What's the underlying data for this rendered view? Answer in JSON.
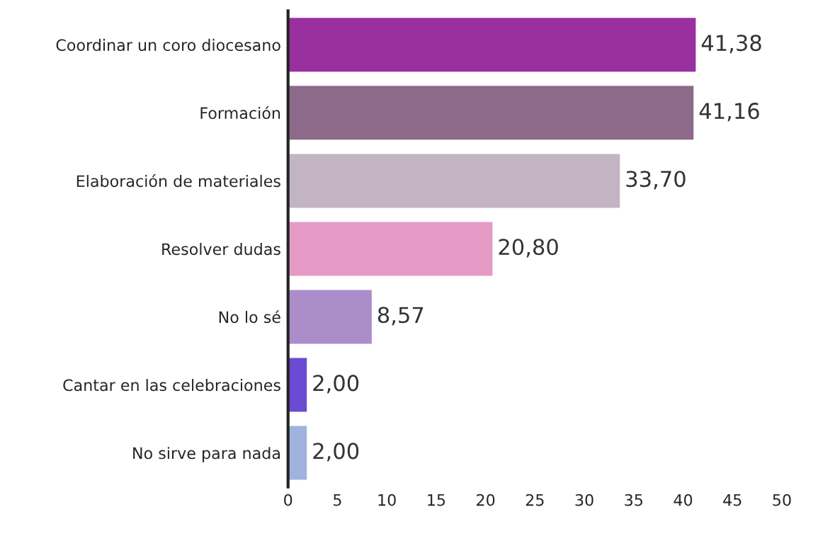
{
  "chart_data": {
    "type": "bar",
    "orientation": "horizontal",
    "categories": [
      "Coordinar un coro diocesano",
      "Formación",
      "Elaboración de materiales",
      "Resolver dudas",
      "No lo sé",
      "Cantar en las celebraciones",
      "No sirve para nada"
    ],
    "values": [
      41.38,
      41.16,
      33.7,
      20.8,
      8.57,
      2.0,
      2.0
    ],
    "colors": [
      "#9a30a0",
      "#8e6a8a",
      "#c2b4c2",
      "#e69ac6",
      "#ab8dca",
      "#6a4bd2",
      "#a0b2de"
    ],
    "value_labels": [
      "41,38",
      "41,16",
      "33,70",
      "20,80",
      "8,57",
      "2,00",
      "2,00"
    ],
    "xlim": [
      0,
      50
    ],
    "xticks": [
      0,
      5,
      10,
      15,
      20,
      25,
      30,
      35,
      40,
      45,
      50
    ],
    "grid": false,
    "legend": false
  }
}
